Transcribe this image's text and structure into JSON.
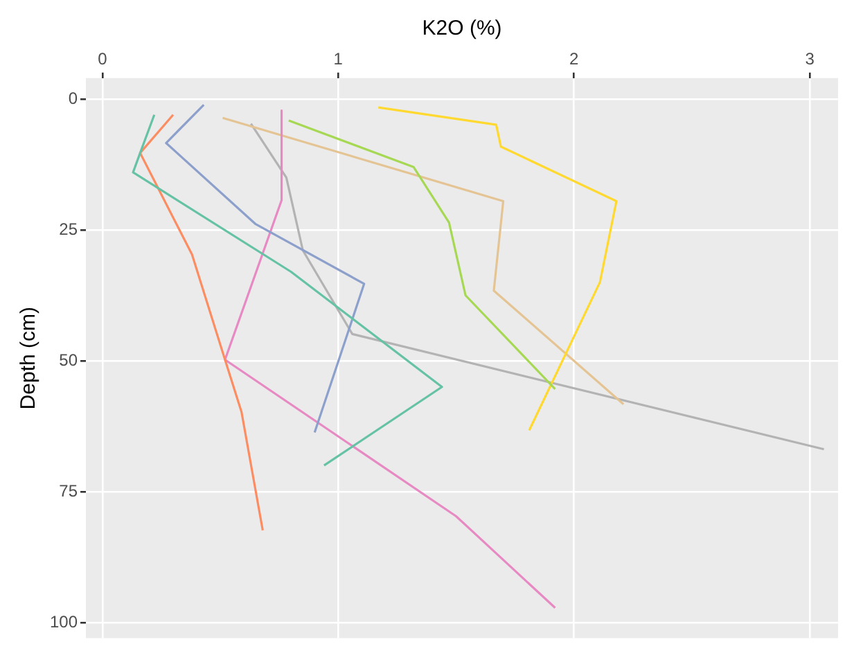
{
  "chart_data": {
    "type": "line",
    "xlabel": "K2O (%)",
    "ylabel": "Depth (cm)",
    "xlim": [
      -0.07,
      3.12
    ],
    "xticks": [
      0,
      1,
      2,
      3
    ],
    "ylim": [
      103,
      -4
    ],
    "yticks": [
      0,
      25,
      50,
      75,
      100
    ],
    "grid": true,
    "legend": false,
    "marker": "none",
    "line_style": "solid",
    "series": [
      {
        "color": "#66c2a5",
        "x": [
          0.22,
          0.16,
          0.13,
          0.8,
          1.44,
          0.94
        ],
        "values": [
          3,
          10.3,
          14,
          33,
          55,
          70
        ]
      },
      {
        "color": "#fc8d62",
        "x": [
          0.3,
          0.16,
          0.38,
          0.52,
          0.59,
          0.68
        ],
        "values": [
          3,
          10.3,
          29.7,
          49.8,
          59.8,
          82.4
        ]
      },
      {
        "color": "#8da0cb",
        "x": [
          0.43,
          0.27,
          0.65,
          1.11,
          0.9
        ],
        "values": [
          1.1,
          8.4,
          23.9,
          35.3,
          63.7
        ]
      },
      {
        "color": "#e78ac3",
        "x": [
          0.76,
          0.76,
          0.52,
          1.5,
          1.92
        ],
        "values": [
          2.2,
          19.3,
          49.8,
          79.7,
          97.2
        ]
      },
      {
        "color": "#a6d854",
        "x": [
          0.79,
          1.32,
          1.47,
          1.54,
          1.92
        ],
        "values": [
          4.1,
          13,
          23.6,
          37.5,
          55.4
        ]
      },
      {
        "color": "#ffd92f",
        "x": [
          1.17,
          1.67,
          1.69,
          2.18,
          2.11,
          1.81
        ],
        "values": [
          1.6,
          4.9,
          9.1,
          19.5,
          35,
          63.3
        ]
      },
      {
        "color": "#e5c494",
        "x": [
          0.51,
          1.7,
          1.66,
          2.21
        ],
        "values": [
          3.6,
          19.5,
          36.6,
          58.3
        ]
      },
      {
        "color": "#b3b3b3",
        "x": [
          0.63,
          0.78,
          0.85,
          1.06,
          3.06
        ],
        "values": [
          4.7,
          15,
          28.9,
          44.9,
          66.9
        ]
      }
    ]
  }
}
